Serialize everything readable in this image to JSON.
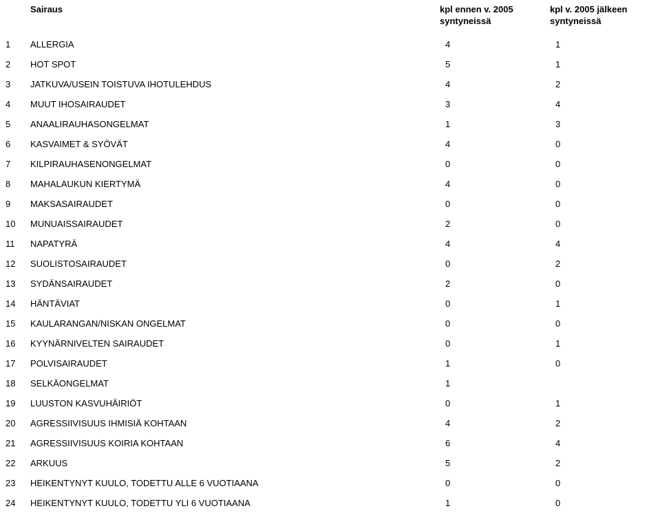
{
  "header": {
    "col_name": "Sairaus",
    "col_before_line1": "kpl ennen v. 2005",
    "col_before_line2": "syntyneissä",
    "col_after_line1": "kpl v. 2005 jälkeen",
    "col_after_line2": "syntyneissä"
  },
  "rows": [
    {
      "num": "1",
      "name": "ALLERGIA",
      "before": "4",
      "after": "1"
    },
    {
      "num": "2",
      "name": "HOT SPOT",
      "before": "5",
      "after": "1"
    },
    {
      "num": "3",
      "name": "JATKUVA/USEIN TOISTUVA IHOTULEHDUS",
      "before": "4",
      "after": "2"
    },
    {
      "num": "4",
      "name": "MUUT IHOSAIRAUDET",
      "before": "3",
      "after": "4"
    },
    {
      "num": "5",
      "name": "ANAALIRAUHASONGELMAT",
      "before": "1",
      "after": "3"
    },
    {
      "num": "6",
      "name": "KASVAIMET & SYÖVÄT",
      "before": "4",
      "after": "0"
    },
    {
      "num": "7",
      "name": "KILPIRAUHASENONGELMAT",
      "before": "0",
      "after": "0"
    },
    {
      "num": "8",
      "name": "MAHALAUKUN KIERTYMÄ",
      "before": "4",
      "after": "0"
    },
    {
      "num": "9",
      "name": "MAKSASAIRAUDET",
      "before": "0",
      "after": "0"
    },
    {
      "num": "10",
      "name": "MUNUAISSAIRAUDET",
      "before": "2",
      "after": "0"
    },
    {
      "num": "11",
      "name": "NAPATYRÄ",
      "before": "4",
      "after": "4"
    },
    {
      "num": "12",
      "name": "SUOLISTOSAIRAUDET",
      "before": "0",
      "after": "2"
    },
    {
      "num": "13",
      "name": "SYDÄNSAIRAUDET",
      "before": "2",
      "after": "0"
    },
    {
      "num": "14",
      "name": "HÄNTÄVIAT",
      "before": "0",
      "after": "1"
    },
    {
      "num": "15",
      "name": "KAULARANGAN/NISKAN ONGELMAT",
      "before": "0",
      "after": "0"
    },
    {
      "num": "16",
      "name": "KYYNÄRNIVELTEN SAIRAUDET",
      "before": "0",
      "after": "1"
    },
    {
      "num": "17",
      "name": "POLVISAIRAUDET",
      "before": "1",
      "after": "0"
    },
    {
      "num": "18",
      "name": "SELKÄONGELMAT",
      "before": "1",
      "after": ""
    },
    {
      "num": "19",
      "name": "LUUSTON KASVUHÄIRIÖT",
      "before": "0",
      "after": "1"
    },
    {
      "num": "20",
      "name": "AGRESSIIVISUUS IHMISIÄ KOHTAAN",
      "before": "4",
      "after": "2"
    },
    {
      "num": "21",
      "name": "AGRESSIIVISUUS KOIRIA KOHTAAN",
      "before": "6",
      "after": "4"
    },
    {
      "num": "22",
      "name": "ARKUUS",
      "before": "5",
      "after": "2"
    },
    {
      "num": "23",
      "name": "HEIKENTYNYT KUULO, TODETTU ALLE 6 VUOTIAANA",
      "before": "0",
      "after": "0"
    },
    {
      "num": "24",
      "name": "HEIKENTYNYT KUULO, TODETTU YLI 6 VUOTIAANA",
      "before": "1",
      "after": "0"
    }
  ]
}
